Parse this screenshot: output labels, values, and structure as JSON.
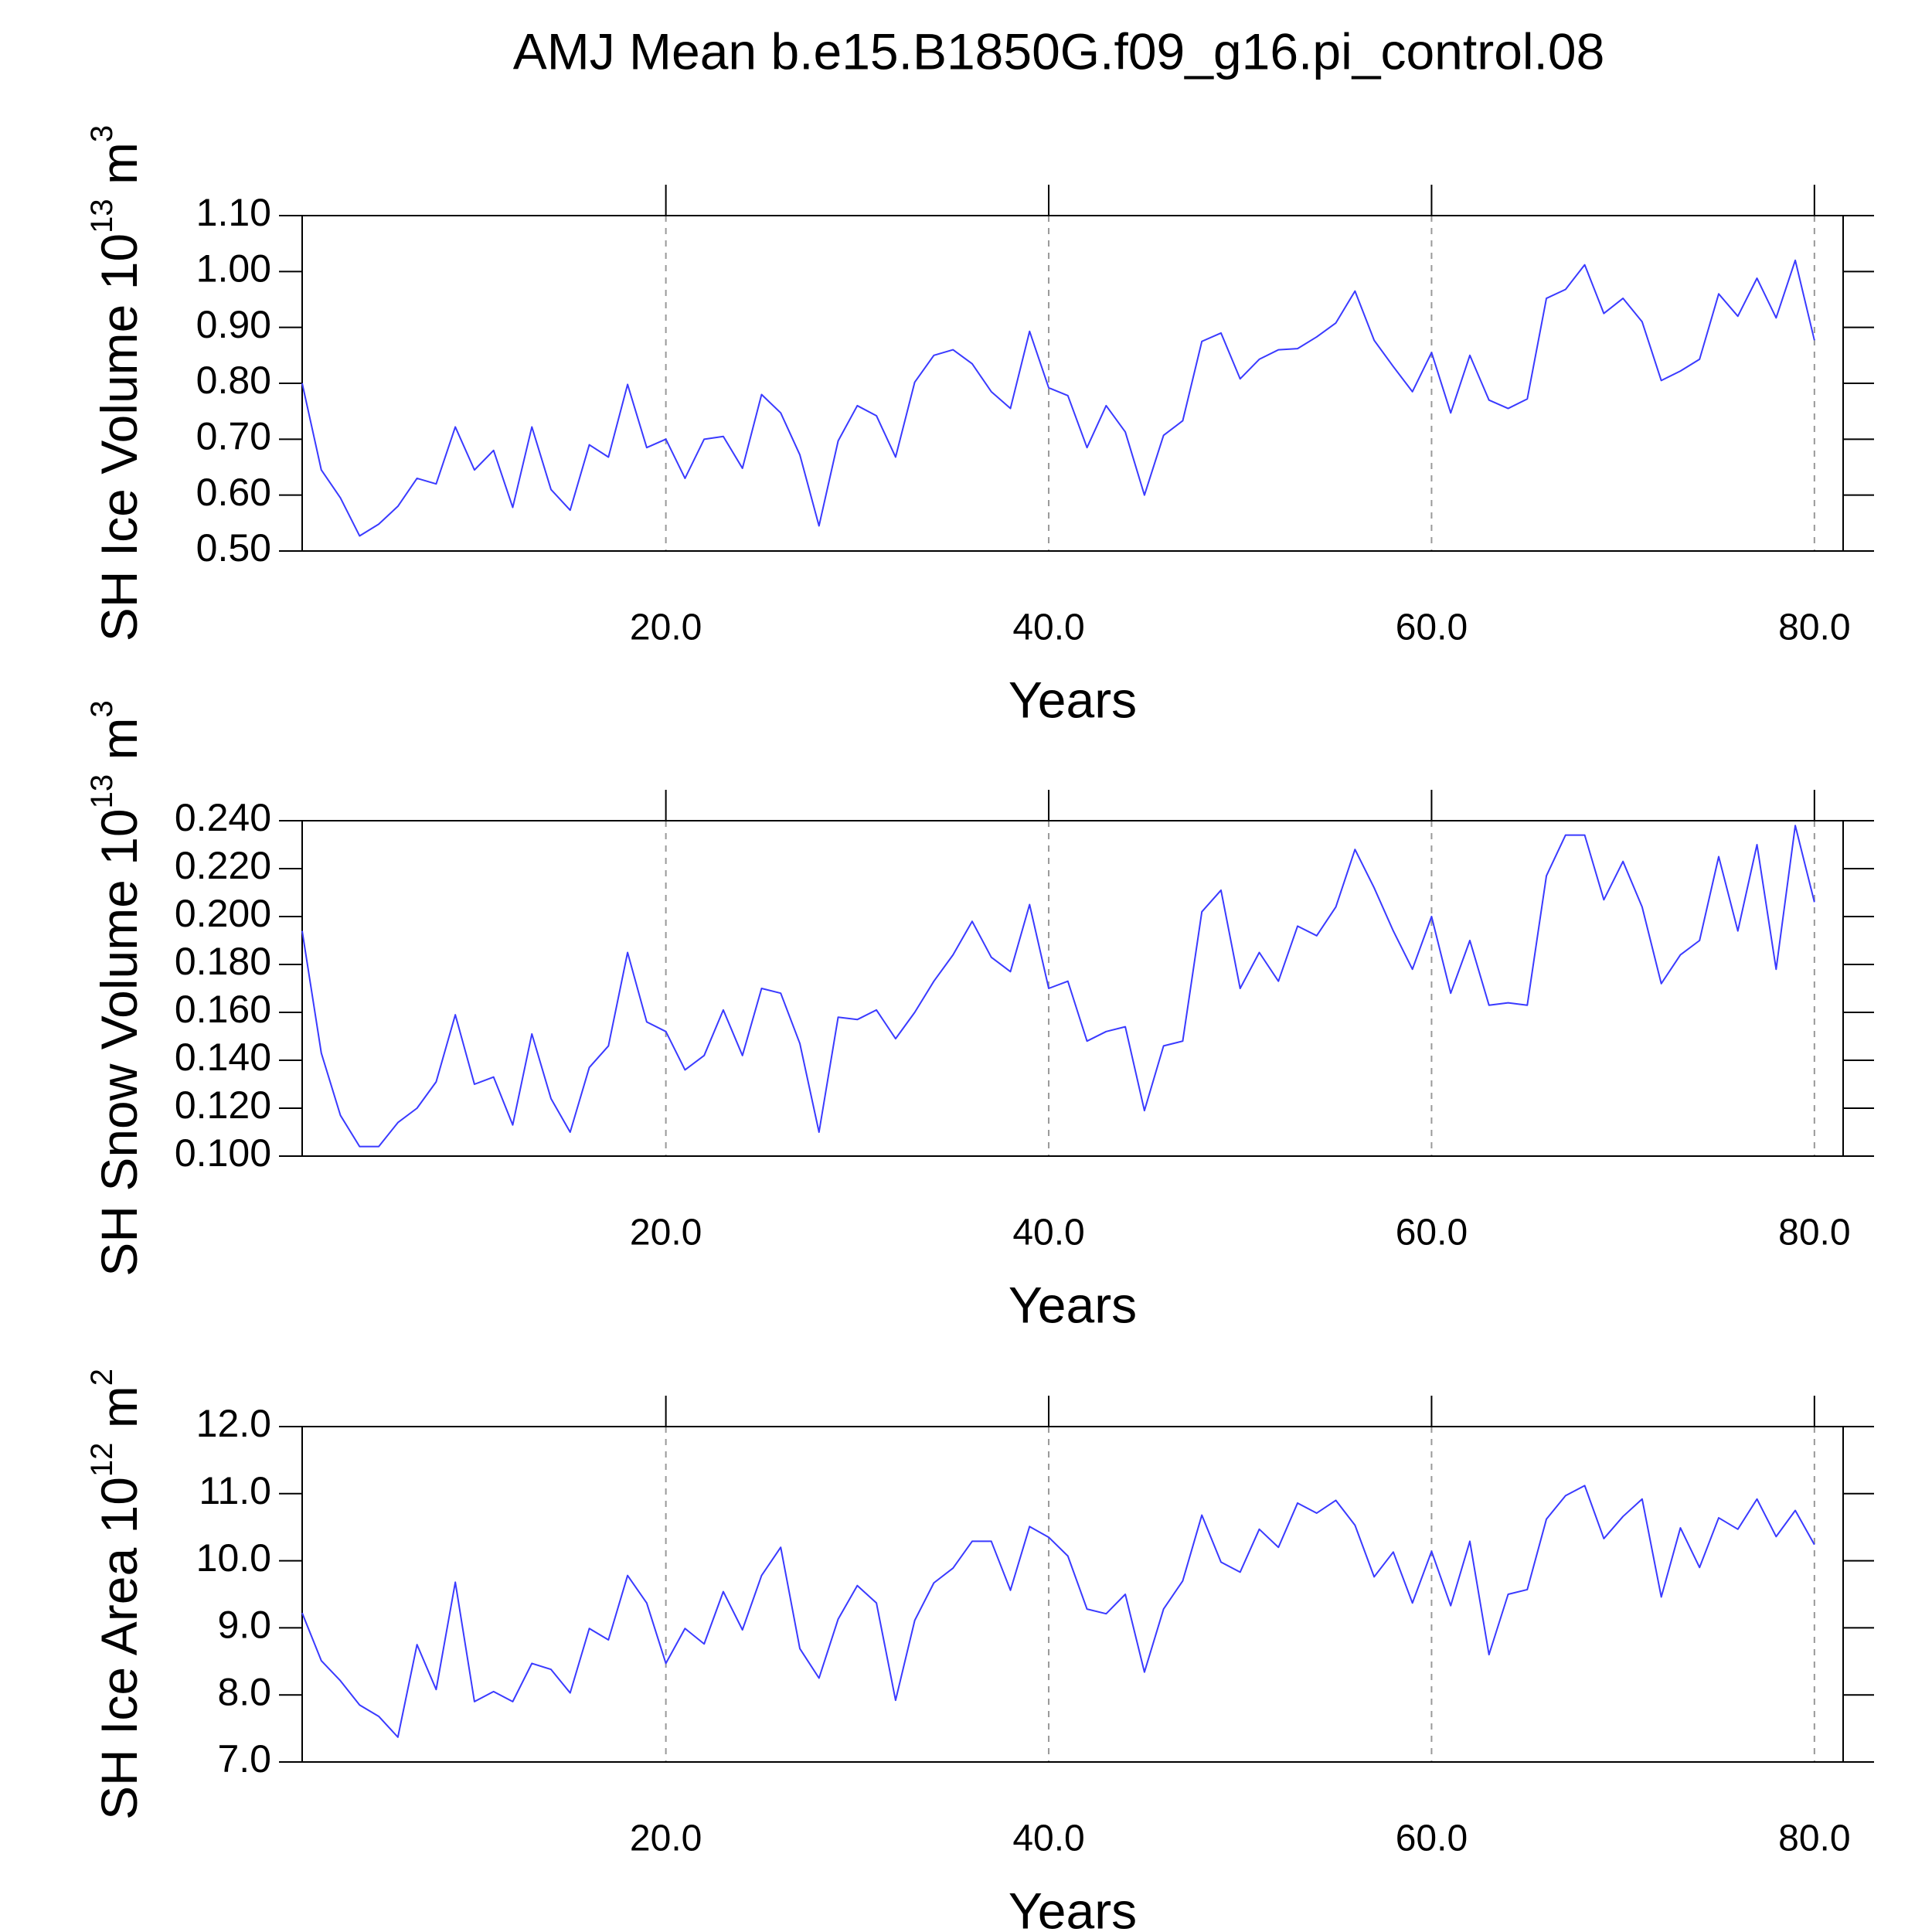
{
  "title": "AMJ Mean b.e15.B1850G.f09_g16.pi_control.08",
  "chart_data": [
    {
      "type": "line",
      "y_label_parts": [
        "SH Ice Volume 10",
        "13",
        " m",
        "3"
      ],
      "x_label": "Years",
      "x": [
        1,
        2,
        3,
        4,
        5,
        6,
        7,
        8,
        9,
        10,
        11,
        12,
        13,
        14,
        15,
        16,
        17,
        18,
        19,
        20,
        21,
        22,
        23,
        24,
        25,
        26,
        27,
        28,
        29,
        30,
        31,
        32,
        33,
        34,
        35,
        36,
        37,
        38,
        39,
        40,
        41,
        42,
        43,
        44,
        45,
        46,
        47,
        48,
        49,
        50,
        51,
        52,
        53,
        54,
        55,
        56,
        57,
        58,
        59,
        60,
        61,
        62,
        63,
        64,
        65,
        66,
        67,
        68,
        69,
        70,
        71,
        72,
        73,
        74,
        75,
        76,
        77,
        78,
        79,
        80
      ],
      "series": [
        {
          "color": "#3a3aff",
          "values": [
            0.8,
            0.645,
            0.595,
            0.527,
            0.548,
            0.58,
            0.63,
            0.62,
            0.722,
            0.645,
            0.68,
            0.578,
            0.722,
            0.61,
            0.573,
            0.69,
            0.668,
            0.798,
            0.685,
            0.7,
            0.63,
            0.7,
            0.705,
            0.648,
            0.78,
            0.747,
            0.672,
            0.545,
            0.697,
            0.76,
            0.742,
            0.668,
            0.802,
            0.85,
            0.86,
            0.835,
            0.785,
            0.755,
            0.893,
            0.792,
            0.778,
            0.685,
            0.76,
            0.713,
            0.6,
            0.707,
            0.733,
            0.875,
            0.89,
            0.808,
            0.843,
            0.86,
            0.862,
            0.883,
            0.908,
            0.965,
            0.877,
            0.83,
            0.785,
            0.855,
            0.747,
            0.85,
            0.77,
            0.755,
            0.772,
            0.952,
            0.968,
            1.012,
            0.925,
            0.952,
            0.91,
            0.805,
            0.822,
            0.843,
            0.96,
            0.92,
            0.988,
            0.917,
            1.02,
            0.877
          ]
        }
      ],
      "xlim": [
        1,
        81.5
      ],
      "xticks": [
        {
          "value": 20,
          "label": "20.0"
        },
        {
          "value": 40,
          "label": "40.0"
        },
        {
          "value": 60,
          "label": "60.0"
        },
        {
          "value": 80,
          "label": "80.0"
        }
      ],
      "ylim": [
        0.5,
        1.1
      ],
      "yticks": [
        {
          "value": 0.5,
          "label": "0.50"
        },
        {
          "value": 0.6,
          "label": "0.60"
        },
        {
          "value": 0.7,
          "label": "0.70"
        },
        {
          "value": 0.8,
          "label": "0.80"
        },
        {
          "value": 0.9,
          "label": "0.90"
        },
        {
          "value": 1.0,
          "label": "1.00"
        },
        {
          "value": 1.1,
          "label": "1.10"
        }
      ],
      "x_grid": true
    },
    {
      "type": "line",
      "y_label_parts": [
        "SH Snow Volume 10",
        "13",
        " m",
        "3"
      ],
      "x_label": "Years",
      "x": [
        1,
        2,
        3,
        4,
        5,
        6,
        7,
        8,
        9,
        10,
        11,
        12,
        13,
        14,
        15,
        16,
        17,
        18,
        19,
        20,
        21,
        22,
        23,
        24,
        25,
        26,
        27,
        28,
        29,
        30,
        31,
        32,
        33,
        34,
        35,
        36,
        37,
        38,
        39,
        40,
        41,
        42,
        43,
        44,
        45,
        46,
        47,
        48,
        49,
        50,
        51,
        52,
        53,
        54,
        55,
        56,
        57,
        58,
        59,
        60,
        61,
        62,
        63,
        64,
        65,
        66,
        67,
        68,
        69,
        70,
        71,
        72,
        73,
        74,
        75,
        76,
        77,
        78,
        79,
        80
      ],
      "series": [
        {
          "color": "#3a3aff",
          "values": [
            0.194,
            0.143,
            0.117,
            0.104,
            0.104,
            0.114,
            0.12,
            0.131,
            0.159,
            0.13,
            0.133,
            0.113,
            0.151,
            0.124,
            0.11,
            0.137,
            0.146,
            0.185,
            0.156,
            0.152,
            0.136,
            0.142,
            0.161,
            0.142,
            0.17,
            0.168,
            0.147,
            0.11,
            0.158,
            0.157,
            0.161,
            0.149,
            0.16,
            0.173,
            0.184,
            0.198,
            0.183,
            0.177,
            0.205,
            0.17,
            0.173,
            0.148,
            0.152,
            0.154,
            0.119,
            0.146,
            0.148,
            0.202,
            0.211,
            0.17,
            0.185,
            0.173,
            0.196,
            0.192,
            0.204,
            0.228,
            0.212,
            0.194,
            0.178,
            0.2,
            0.168,
            0.19,
            0.163,
            0.164,
            0.163,
            0.217,
            0.234,
            0.234,
            0.207,
            0.223,
            0.204,
            0.172,
            0.184,
            0.19,
            0.225,
            0.194,
            0.23,
            0.178,
            0.238,
            0.206
          ]
        }
      ],
      "xlim": [
        1,
        81.5
      ],
      "xticks": [
        {
          "value": 20,
          "label": "20.0"
        },
        {
          "value": 40,
          "label": "40.0"
        },
        {
          "value": 60,
          "label": "60.0"
        },
        {
          "value": 80,
          "label": "80.0"
        }
      ],
      "ylim": [
        0.1,
        0.24
      ],
      "yticks": [
        {
          "value": 0.1,
          "label": "0.100"
        },
        {
          "value": 0.12,
          "label": "0.120"
        },
        {
          "value": 0.14,
          "label": "0.140"
        },
        {
          "value": 0.16,
          "label": "0.160"
        },
        {
          "value": 0.18,
          "label": "0.180"
        },
        {
          "value": 0.2,
          "label": "0.200"
        },
        {
          "value": 0.22,
          "label": "0.220"
        },
        {
          "value": 0.24,
          "label": "0.240"
        }
      ],
      "x_grid": true
    },
    {
      "type": "line",
      "y_label_parts": [
        "SH Ice Area 10",
        "12",
        " m",
        "2"
      ],
      "x_label": "Years",
      "x": [
        1,
        2,
        3,
        4,
        5,
        6,
        7,
        8,
        9,
        10,
        11,
        12,
        13,
        14,
        15,
        16,
        17,
        18,
        19,
        20,
        21,
        22,
        23,
        24,
        25,
        26,
        27,
        28,
        29,
        30,
        31,
        32,
        33,
        34,
        35,
        36,
        37,
        38,
        39,
        40,
        41,
        42,
        43,
        44,
        45,
        46,
        47,
        48,
        49,
        50,
        51,
        52,
        53,
        54,
        55,
        56,
        57,
        58,
        59,
        60,
        61,
        62,
        63,
        64,
        65,
        66,
        67,
        68,
        69,
        70,
        71,
        72,
        73,
        74,
        75,
        76,
        77,
        78,
        79,
        80
      ],
      "series": [
        {
          "color": "#3a3aff",
          "values": [
            9.22,
            8.51,
            8.21,
            7.85,
            7.68,
            7.37,
            8.75,
            8.08,
            9.68,
            7.9,
            8.05,
            7.9,
            8.47,
            8.38,
            8.03,
            8.99,
            8.82,
            9.78,
            9.37,
            8.47,
            8.99,
            8.76,
            9.54,
            8.97,
            9.78,
            10.2,
            8.69,
            8.25,
            9.13,
            9.63,
            9.37,
            7.92,
            9.11,
            9.67,
            9.89,
            10.29,
            10.29,
            9.56,
            10.51,
            10.35,
            10.07,
            9.28,
            9.21,
            9.5,
            8.34,
            9.28,
            9.7,
            10.68,
            9.98,
            9.83,
            10.47,
            10.2,
            10.86,
            10.71,
            10.9,
            10.53,
            9.76,
            10.13,
            9.37,
            10.14,
            9.33,
            10.29,
            8.6,
            9.5,
            9.57,
            10.62,
            10.97,
            11.12,
            10.33,
            10.66,
            10.92,
            9.46,
            10.49,
            9.9,
            10.64,
            10.47,
            10.92,
            10.36,
            10.75,
            10.24
          ]
        }
      ],
      "xlim": [
        1,
        81.5
      ],
      "xticks": [
        {
          "value": 20,
          "label": "20.0"
        },
        {
          "value": 40,
          "label": "40.0"
        },
        {
          "value": 60,
          "label": "60.0"
        },
        {
          "value": 80,
          "label": "80.0"
        }
      ],
      "ylim": [
        7,
        12
      ],
      "yticks": [
        {
          "value": 7,
          "label": "7.0"
        },
        {
          "value": 8,
          "label": "8.0"
        },
        {
          "value": 9,
          "label": "9.0"
        },
        {
          "value": 10,
          "label": "10.0"
        },
        {
          "value": 11,
          "label": "11.0"
        },
        {
          "value": 12,
          "label": "12.0"
        }
      ],
      "x_grid": true
    }
  ]
}
